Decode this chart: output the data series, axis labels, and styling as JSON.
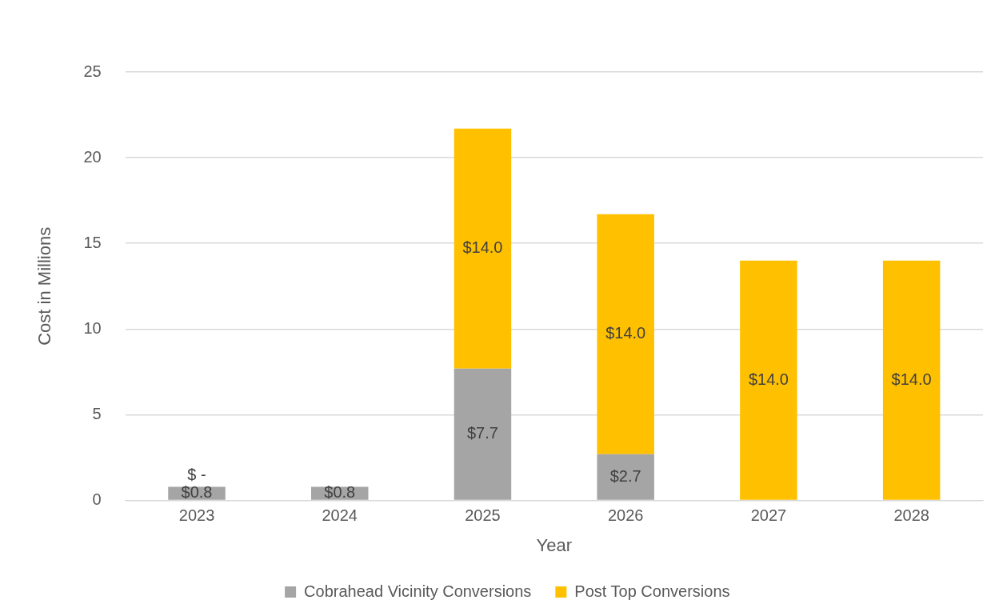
{
  "chart_data": {
    "type": "bar",
    "stacked": true,
    "xlabel": "Year",
    "ylabel": "Cost in Millions",
    "categories": [
      "2023",
      "2024",
      "2025",
      "2026",
      "2027",
      "2028"
    ],
    "series": [
      {
        "name": "Cobrahead Vicinity Conversions",
        "color": "#a5a5a5",
        "values": [
          0.8,
          0.8,
          7.7,
          2.7,
          0,
          0
        ],
        "value_labels": [
          "$0.8",
          "$0.8",
          "$7.7",
          "$2.7",
          null,
          null
        ]
      },
      {
        "name": "Post Top Conversions",
        "color": "#ffc000",
        "values": [
          0,
          null,
          14.0,
          14.0,
          14.0,
          14.0
        ],
        "value_labels": [
          "$ -",
          null,
          "$14.0",
          "$14.0",
          "$14.0",
          "$14.0"
        ]
      }
    ],
    "ylim": [
      0,
      25
    ],
    "yticks": [
      0,
      5,
      10,
      15,
      20,
      25
    ],
    "grid": "y",
    "legend": "bottom"
  }
}
